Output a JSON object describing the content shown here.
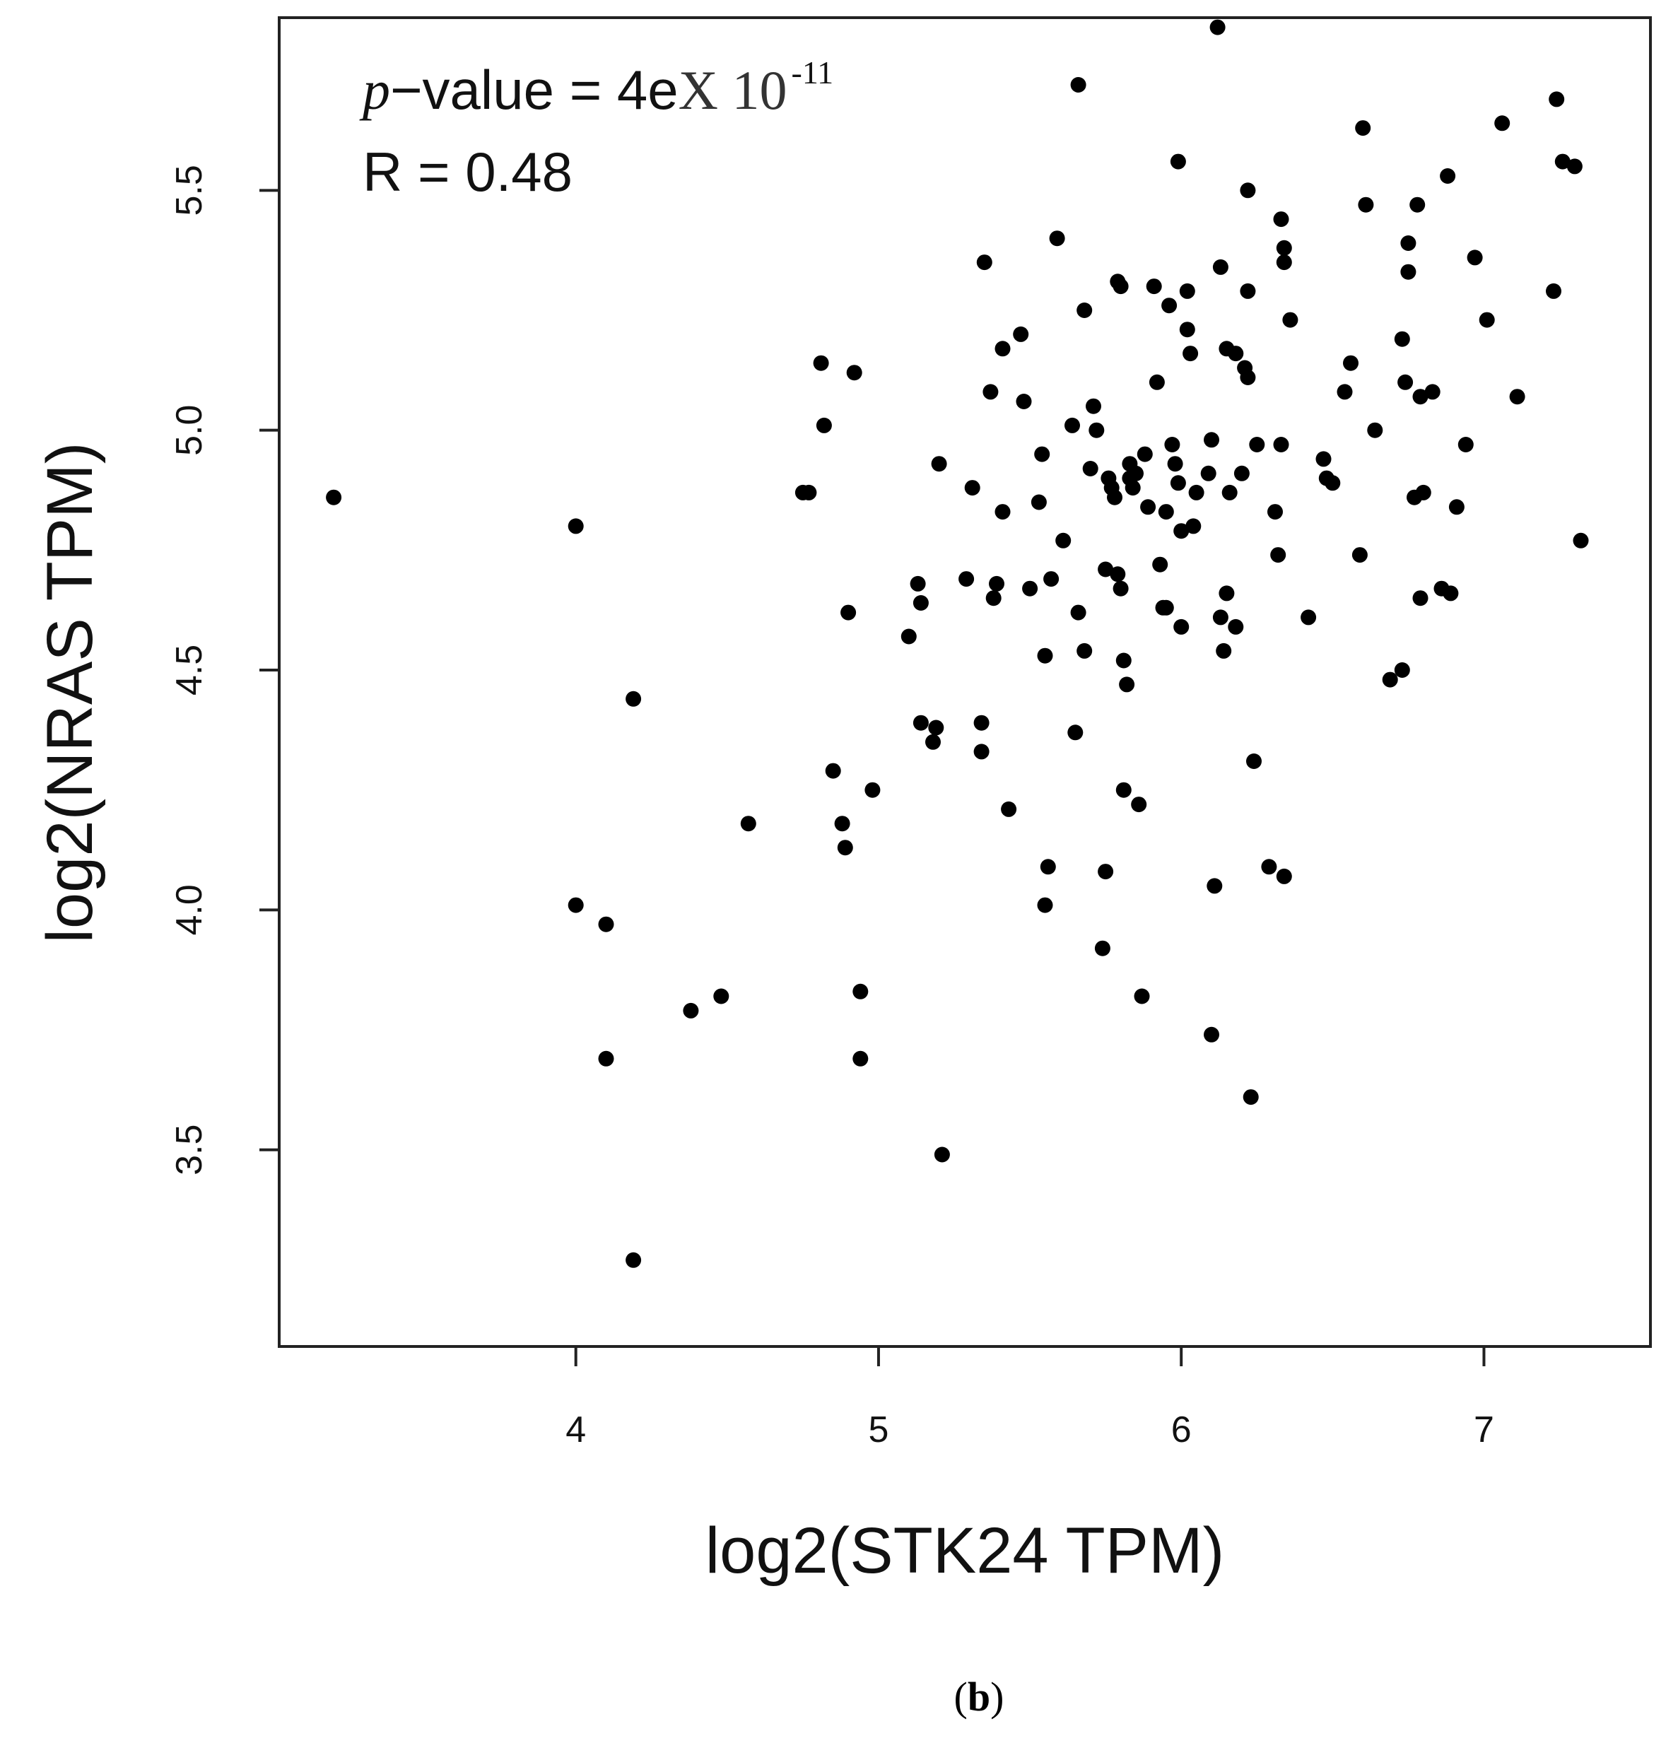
{
  "chart_data": {
    "type": "scatter",
    "xlabel": "log2(STK24 TPM)",
    "ylabel": "log2(NRAS TPM)",
    "xlim": [
      3.02,
      7.55
    ],
    "ylim": [
      3.09,
      5.86
    ],
    "xticks": [
      4,
      5,
      6,
      7
    ],
    "yticks": [
      3.5,
      4.0,
      4.5,
      5.0,
      5.5
    ],
    "xtick_labels": [
      "4",
      "5",
      "6",
      "7"
    ],
    "ytick_labels": [
      "3.5",
      "4.0",
      "4.5",
      "5.0",
      "5.5"
    ],
    "grid": false,
    "annotations": {
      "p_symbol": "p",
      "p_text": "−value = 4e",
      "p_times": "X 10",
      "p_exponent": "-11",
      "r_text": "R = 0.48"
    },
    "panel_label": {
      "open": "(",
      "letter": "b",
      "close": ")"
    },
    "points": [
      [
        3.2,
        4.86
      ],
      [
        4.0,
        4.8
      ],
      [
        4.0,
        4.01
      ],
      [
        4.1,
        3.97
      ],
      [
        4.1,
        3.69
      ],
      [
        4.19,
        4.44
      ],
      [
        4.19,
        3.27
      ],
      [
        4.38,
        3.79
      ],
      [
        4.48,
        3.82
      ],
      [
        4.57,
        4.18
      ],
      [
        4.75,
        4.87
      ],
      [
        4.77,
        4.87
      ],
      [
        4.81,
        5.14
      ],
      [
        4.82,
        5.01
      ],
      [
        4.85,
        4.29
      ],
      [
        4.88,
        4.18
      ],
      [
        4.89,
        4.13
      ],
      [
        4.9,
        4.62
      ],
      [
        4.92,
        5.12
      ],
      [
        4.94,
        3.83
      ],
      [
        4.94,
        3.69
      ],
      [
        4.98,
        4.25
      ],
      [
        5.1,
        4.57
      ],
      [
        5.13,
        4.68
      ],
      [
        5.14,
        4.64
      ],
      [
        5.14,
        4.39
      ],
      [
        5.18,
        4.35
      ],
      [
        5.19,
        4.38
      ],
      [
        5.2,
        4.93
      ],
      [
        5.21,
        3.49
      ],
      [
        5.29,
        4.69
      ],
      [
        5.31,
        4.88
      ],
      [
        5.34,
        4.39
      ],
      [
        5.34,
        4.33
      ],
      [
        5.35,
        5.35
      ],
      [
        5.37,
        5.08
      ],
      [
        5.38,
        4.65
      ],
      [
        5.39,
        4.68
      ],
      [
        5.41,
        4.83
      ],
      [
        5.41,
        5.17
      ],
      [
        5.43,
        4.21
      ],
      [
        5.47,
        5.2
      ],
      [
        5.48,
        5.06
      ],
      [
        5.5,
        4.67
      ],
      [
        5.53,
        4.85
      ],
      [
        5.54,
        4.95
      ],
      [
        5.55,
        4.53
      ],
      [
        5.55,
        4.01
      ],
      [
        5.56,
        4.09
      ],
      [
        5.57,
        4.69
      ],
      [
        5.59,
        5.4
      ],
      [
        5.61,
        4.77
      ],
      [
        5.64,
        5.01
      ],
      [
        5.65,
        4.37
      ],
      [
        5.66,
        5.72
      ],
      [
        5.66,
        4.62
      ],
      [
        5.68,
        4.54
      ],
      [
        5.68,
        5.25
      ],
      [
        5.7,
        4.92
      ],
      [
        5.71,
        5.05
      ],
      [
        5.72,
        5.0
      ],
      [
        5.74,
        3.92
      ],
      [
        5.75,
        4.08
      ],
      [
        5.75,
        4.71
      ],
      [
        5.76,
        4.9
      ],
      [
        5.77,
        4.88
      ],
      [
        5.78,
        4.86
      ],
      [
        5.79,
        4.7
      ],
      [
        5.79,
        5.31
      ],
      [
        5.8,
        5.3
      ],
      [
        5.8,
        4.67
      ],
      [
        5.81,
        4.25
      ],
      [
        5.81,
        4.52
      ],
      [
        5.82,
        4.47
      ],
      [
        5.83,
        4.93
      ],
      [
        5.83,
        4.9
      ],
      [
        5.84,
        4.88
      ],
      [
        5.85,
        4.91
      ],
      [
        5.86,
        4.22
      ],
      [
        5.87,
        3.82
      ],
      [
        5.88,
        4.95
      ],
      [
        5.89,
        4.84
      ],
      [
        5.91,
        5.3
      ],
      [
        5.92,
        5.1
      ],
      [
        5.93,
        4.72
      ],
      [
        5.94,
        4.63
      ],
      [
        5.95,
        4.63
      ],
      [
        5.95,
        4.83
      ],
      [
        5.96,
        5.26
      ],
      [
        5.97,
        4.97
      ],
      [
        5.98,
        4.93
      ],
      [
        5.99,
        5.56
      ],
      [
        5.99,
        4.89
      ],
      [
        6.0,
        4.59
      ],
      [
        6.0,
        4.79
      ],
      [
        6.02,
        5.29
      ],
      [
        6.02,
        5.21
      ],
      [
        6.03,
        5.16
      ],
      [
        6.04,
        4.8
      ],
      [
        6.05,
        4.87
      ],
      [
        6.09,
        4.91
      ],
      [
        6.1,
        4.98
      ],
      [
        6.1,
        3.74
      ],
      [
        6.11,
        4.05
      ],
      [
        6.12,
        5.84
      ],
      [
        6.13,
        4.61
      ],
      [
        6.13,
        5.34
      ],
      [
        6.14,
        4.54
      ],
      [
        6.15,
        4.66
      ],
      [
        6.15,
        5.17
      ],
      [
        6.16,
        4.87
      ],
      [
        6.18,
        5.16
      ],
      [
        6.18,
        4.59
      ],
      [
        6.2,
        4.91
      ],
      [
        6.21,
        5.13
      ],
      [
        6.22,
        5.11
      ],
      [
        6.22,
        5.5
      ],
      [
        6.22,
        5.29
      ],
      [
        6.23,
        3.61
      ],
      [
        6.24,
        4.31
      ],
      [
        6.25,
        4.97
      ],
      [
        6.29,
        4.09
      ],
      [
        6.31,
        4.83
      ],
      [
        6.32,
        4.74
      ],
      [
        6.33,
        5.44
      ],
      [
        6.33,
        4.97
      ],
      [
        6.34,
        5.38
      ],
      [
        6.34,
        5.35
      ],
      [
        6.34,
        4.07
      ],
      [
        6.36,
        5.23
      ],
      [
        6.42,
        4.61
      ],
      [
        6.47,
        4.94
      ],
      [
        6.48,
        4.9
      ],
      [
        6.5,
        4.89
      ],
      [
        6.54,
        5.08
      ],
      [
        6.56,
        5.14
      ],
      [
        6.59,
        4.74
      ],
      [
        6.6,
        5.63
      ],
      [
        6.61,
        5.47
      ],
      [
        6.64,
        5.0
      ],
      [
        6.69,
        4.48
      ],
      [
        6.73,
        4.5
      ],
      [
        6.73,
        5.19
      ],
      [
        6.74,
        5.1
      ],
      [
        6.75,
        5.33
      ],
      [
        6.75,
        5.39
      ],
      [
        6.77,
        4.86
      ],
      [
        6.78,
        5.47
      ],
      [
        6.79,
        5.07
      ],
      [
        6.79,
        4.65
      ],
      [
        6.8,
        4.87
      ],
      [
        6.83,
        5.08
      ],
      [
        6.86,
        4.67
      ],
      [
        6.88,
        5.53
      ],
      [
        6.89,
        4.66
      ],
      [
        6.91,
        4.84
      ],
      [
        6.94,
        4.97
      ],
      [
        6.97,
        5.36
      ],
      [
        7.01,
        5.23
      ],
      [
        7.06,
        5.64
      ],
      [
        7.11,
        5.07
      ],
      [
        7.23,
        5.29
      ],
      [
        7.24,
        5.69
      ],
      [
        7.26,
        5.56
      ],
      [
        7.3,
        5.55
      ],
      [
        7.32,
        4.77
      ]
    ]
  }
}
